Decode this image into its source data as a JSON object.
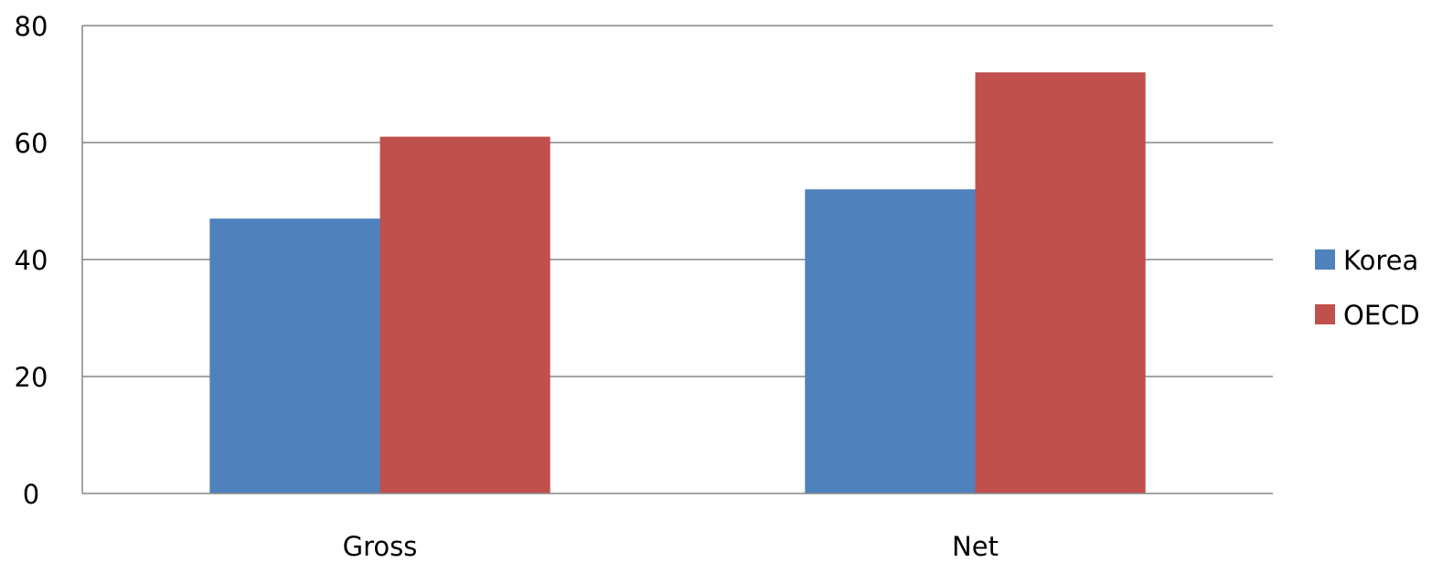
{
  "chart_data": {
    "type": "bar",
    "title": "",
    "xlabel": "",
    "ylabel": "",
    "categories": [
      "Gross",
      "Net"
    ],
    "series": [
      {
        "name": "Korea",
        "color": "#4F81BD",
        "values": [
          47,
          52
        ]
      },
      {
        "name": "OECD",
        "color": "#C0504D",
        "values": [
          61,
          72
        ]
      }
    ],
    "ylim": [
      0,
      80
    ],
    "yticks": [
      "0",
      "20",
      "40",
      "60",
      "80"
    ],
    "grid": true,
    "legend_position": "right"
  }
}
